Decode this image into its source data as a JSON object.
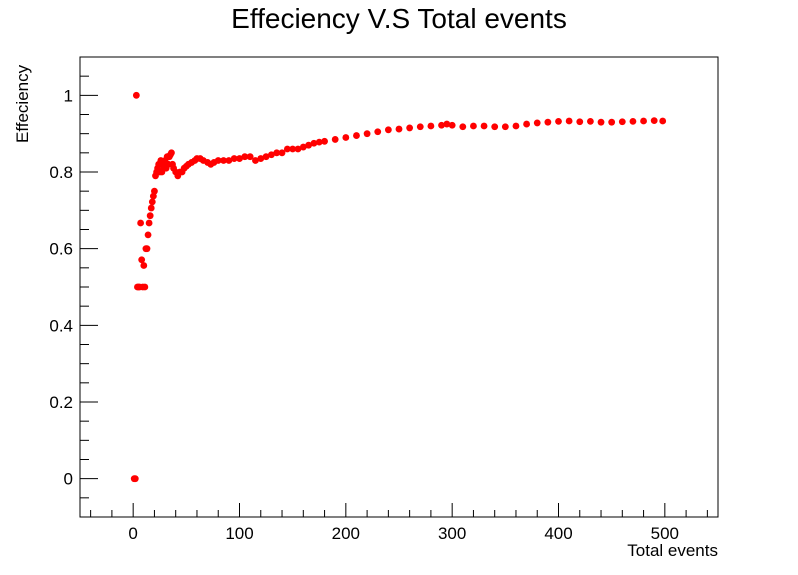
{
  "chart_data": {
    "type": "scatter",
    "title": "Effeciency V.S Total events",
    "xlabel": "Total events",
    "ylabel": "Effeciency",
    "xlim": [
      -50,
      550
    ],
    "ylim": [
      -0.1,
      1.1
    ],
    "x_ticks": [
      "0",
      "100",
      "200",
      "300",
      "400",
      "500"
    ],
    "y_ticks": [
      "0",
      "0.2",
      "0.4",
      "0.6",
      "0.8",
      "1"
    ],
    "grid": false,
    "legend": "none",
    "series": [
      {
        "marker_color": "#ff0000",
        "points": [
          [
            1,
            0.0
          ],
          [
            2,
            0.0
          ],
          [
            3,
            1.0
          ],
          [
            4,
            0.5
          ],
          [
            5,
            0.5
          ],
          [
            6,
            0.5
          ],
          [
            7,
            0.667
          ],
          [
            8,
            0.571
          ],
          [
            9,
            0.5
          ],
          [
            10,
            0.556
          ],
          [
            11,
            0.5
          ],
          [
            12,
            0.6
          ],
          [
            13,
            0.6
          ],
          [
            14,
            0.636
          ],
          [
            15,
            0.667
          ],
          [
            16,
            0.686
          ],
          [
            17,
            0.706
          ],
          [
            18,
            0.722
          ],
          [
            19,
            0.737
          ],
          [
            20,
            0.75
          ],
          [
            21,
            0.79
          ],
          [
            22,
            0.8
          ],
          [
            23,
            0.81
          ],
          [
            24,
            0.82
          ],
          [
            25,
            0.8
          ],
          [
            26,
            0.83
          ],
          [
            27,
            0.8
          ],
          [
            28,
            0.82
          ],
          [
            29,
            0.81
          ],
          [
            30,
            0.83
          ],
          [
            31,
            0.81
          ],
          [
            32,
            0.84
          ],
          [
            33,
            0.82
          ],
          [
            34,
            0.84
          ],
          [
            35,
            0.845
          ],
          [
            36,
            0.85
          ],
          [
            37,
            0.82
          ],
          [
            38,
            0.81
          ],
          [
            40,
            0.8
          ],
          [
            42,
            0.79
          ],
          [
            44,
            0.8
          ],
          [
            46,
            0.8
          ],
          [
            48,
            0.81
          ],
          [
            50,
            0.815
          ],
          [
            52,
            0.82
          ],
          [
            55,
            0.825
          ],
          [
            58,
            0.83
          ],
          [
            60,
            0.835
          ],
          [
            63,
            0.835
          ],
          [
            66,
            0.83
          ],
          [
            70,
            0.825
          ],
          [
            73,
            0.82
          ],
          [
            76,
            0.825
          ],
          [
            80,
            0.83
          ],
          [
            85,
            0.83
          ],
          [
            90,
            0.83
          ],
          [
            95,
            0.835
          ],
          [
            100,
            0.835
          ],
          [
            105,
            0.84
          ],
          [
            110,
            0.84
          ],
          [
            115,
            0.83
          ],
          [
            120,
            0.835
          ],
          [
            125,
            0.84
          ],
          [
            130,
            0.845
          ],
          [
            135,
            0.85
          ],
          [
            140,
            0.85
          ],
          [
            145,
            0.86
          ],
          [
            150,
            0.86
          ],
          [
            155,
            0.86
          ],
          [
            160,
            0.865
          ],
          [
            165,
            0.87
          ],
          [
            170,
            0.875
          ],
          [
            175,
            0.878
          ],
          [
            180,
            0.88
          ],
          [
            190,
            0.885
          ],
          [
            200,
            0.89
          ],
          [
            210,
            0.895
          ],
          [
            220,
            0.9
          ],
          [
            230,
            0.905
          ],
          [
            240,
            0.91
          ],
          [
            250,
            0.912
          ],
          [
            260,
            0.915
          ],
          [
            270,
            0.918
          ],
          [
            280,
            0.92
          ],
          [
            290,
            0.922
          ],
          [
            295,
            0.925
          ],
          [
            300,
            0.922
          ],
          [
            310,
            0.918
          ],
          [
            320,
            0.92
          ],
          [
            330,
            0.92
          ],
          [
            340,
            0.918
          ],
          [
            350,
            0.918
          ],
          [
            360,
            0.92
          ],
          [
            370,
            0.925
          ],
          [
            380,
            0.928
          ],
          [
            390,
            0.93
          ],
          [
            400,
            0.932
          ],
          [
            410,
            0.933
          ],
          [
            420,
            0.931
          ],
          [
            430,
            0.932
          ],
          [
            440,
            0.93
          ],
          [
            450,
            0.93
          ],
          [
            460,
            0.931
          ],
          [
            470,
            0.932
          ],
          [
            480,
            0.933
          ],
          [
            490,
            0.934
          ],
          [
            498,
            0.933
          ]
        ]
      }
    ]
  }
}
